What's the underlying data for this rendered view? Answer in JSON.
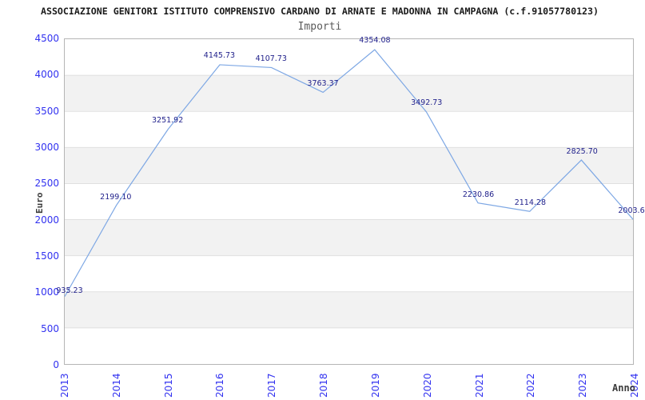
{
  "chart_data": {
    "type": "line",
    "title": "ASSOCIAZIONE GENITORI ISTITUTO COMPRENSIVO CARDANO DI ARNATE E MADONNA IN CAMPAGNA (c.f.91057780123)",
    "subtitle": "Importi",
    "xlabel": "Anno",
    "ylabel": "Euro",
    "x": [
      2013,
      2014,
      2015,
      2016,
      2017,
      2018,
      2019,
      2020,
      2021,
      2022,
      2023,
      2024
    ],
    "values": [
      935.23,
      2199.1,
      3251.92,
      4145.73,
      4107.73,
      3763.37,
      4354.08,
      3492.73,
      2230.86,
      2114.28,
      2825.7,
      2003.6
    ],
    "point_labels": [
      "935.23",
      "2199.10",
      "3251.92",
      "4145.73",
      "4107.73",
      "3763.37",
      "4354.08",
      "3492.73",
      "2230.86",
      "2114.28",
      "2825.70",
      "2003.6"
    ],
    "label_offsets": {
      "0": {
        "dx": 7,
        "dy": 3
      },
      "11": {
        "dx": -3,
        "dy": 0
      }
    },
    "ylim": [
      0,
      4500
    ],
    "ytick_step": 500,
    "ytick_labels": [
      "0",
      "500",
      "1000",
      "1500",
      "2000",
      "2500",
      "3000",
      "3500",
      "4000",
      "4500"
    ],
    "grid": "horizontal-500-step",
    "bands": "alternating-gray-every-500",
    "legend": null,
    "markers": false,
    "last_label_clipped_at_right_edge": true,
    "colors": {
      "line": "#7da7e4",
      "data_label": "#22228c",
      "tick_label": "#3232f0",
      "band": "#f2f2f2",
      "grid_line": "#e0e0e0",
      "plot_border": "#b5b5b5",
      "title": "#1a1a1a",
      "subtitle": "#5a5a5a",
      "axis_title": "#3c3c3c",
      "background": "#ffffff"
    }
  }
}
